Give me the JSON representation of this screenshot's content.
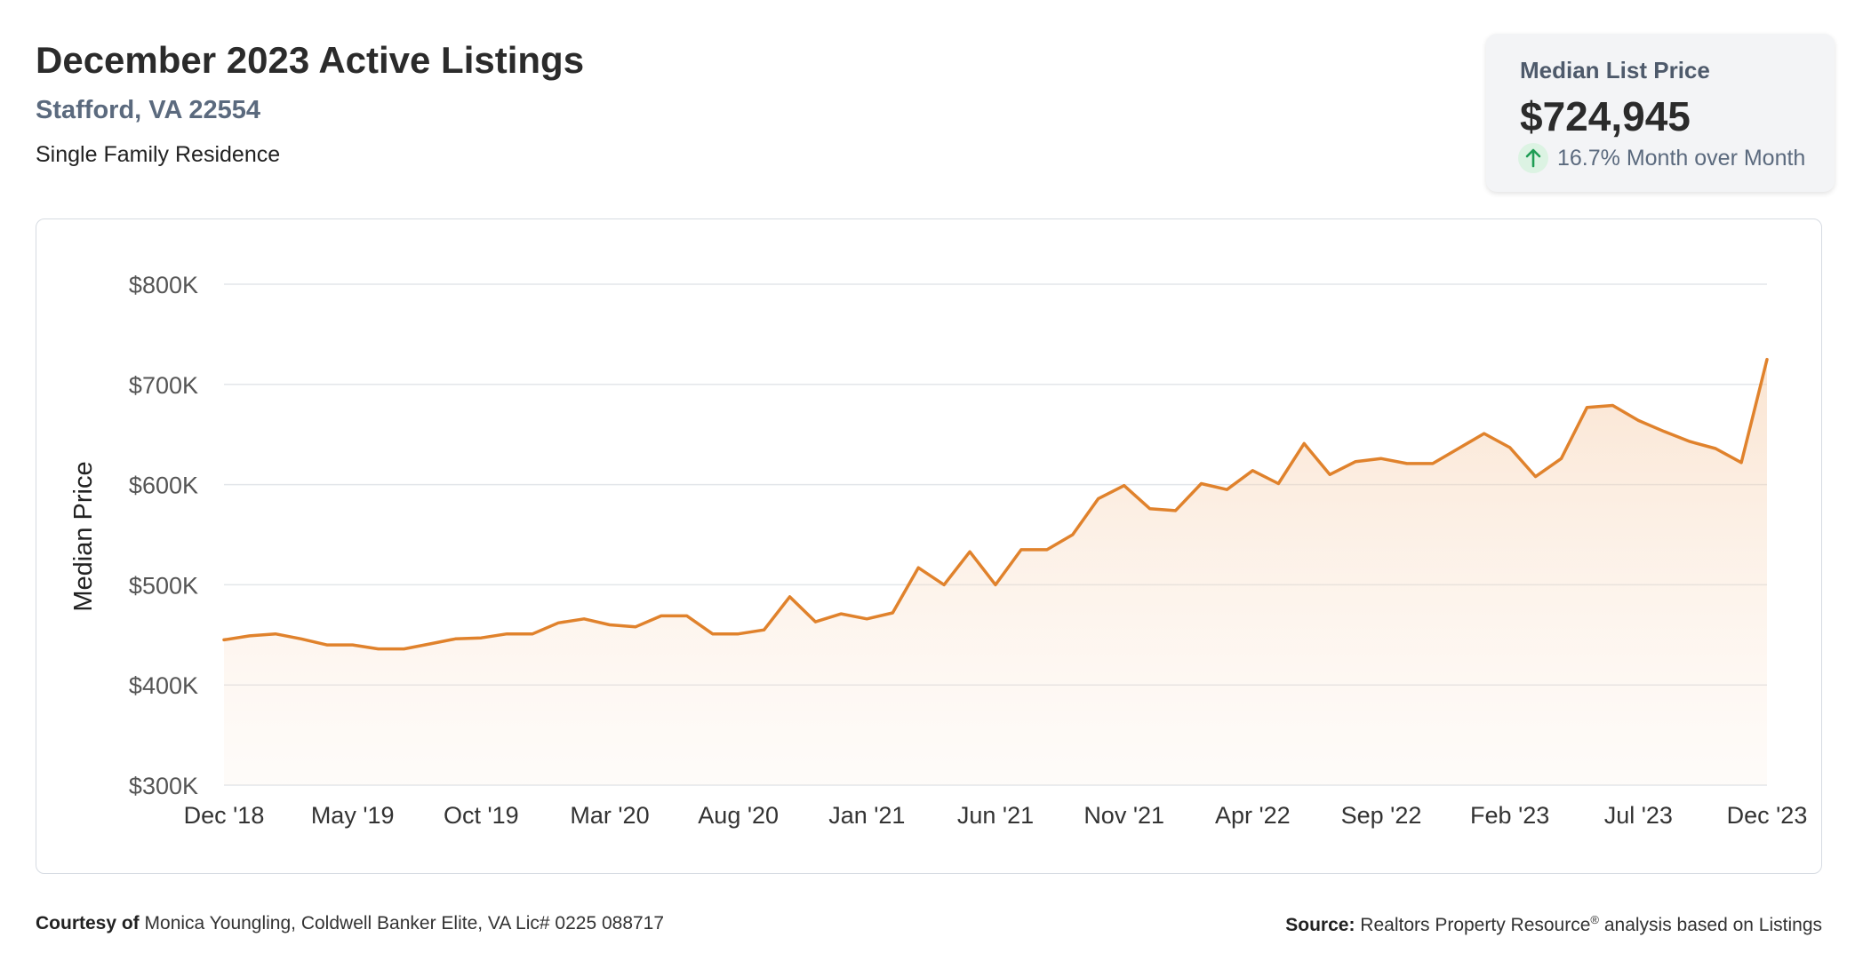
{
  "header": {
    "title": "December 2023 Active Listings",
    "location": "Stafford, VA 22554",
    "property_type": "Single Family Residence"
  },
  "stat_card": {
    "label": "Median List Price",
    "value": "$724,945",
    "change_icon": "arrow-up-icon",
    "change_text": "16.7% Month over Month",
    "change_color": "#1f9d55"
  },
  "chart_data": {
    "type": "area",
    "title": "",
    "xlabel": "",
    "ylabel": "Median Price",
    "ylim": [
      300000,
      800000
    ],
    "y_ticks": [
      300000,
      400000,
      500000,
      600000,
      700000,
      800000
    ],
    "y_tick_labels": [
      "$300K",
      "$400K",
      "$500K",
      "$600K",
      "$700K",
      "$800K"
    ],
    "x_tick_labels": [
      "Dec '18",
      "May '19",
      "Oct '19",
      "Mar '20",
      "Aug '20",
      "Jan '21",
      "Jun '21",
      "Nov '21",
      "Apr '22",
      "Sep '22",
      "Feb '23",
      "Jul '23",
      "Dec '23"
    ],
    "x_tick_every": 5,
    "grid": true,
    "line_color": "#e0822c",
    "fill_color": "#f6cba4",
    "x": [
      "2018-12",
      "2019-01",
      "2019-02",
      "2019-03",
      "2019-04",
      "2019-05",
      "2019-06",
      "2019-07",
      "2019-08",
      "2019-09",
      "2019-10",
      "2019-11",
      "2019-12",
      "2020-01",
      "2020-02",
      "2020-03",
      "2020-04",
      "2020-05",
      "2020-06",
      "2020-07",
      "2020-08",
      "2020-09",
      "2020-10",
      "2020-11",
      "2020-12",
      "2021-01",
      "2021-02",
      "2021-03",
      "2021-04",
      "2021-05",
      "2021-06",
      "2021-07",
      "2021-08",
      "2021-09",
      "2021-10",
      "2021-11",
      "2021-12",
      "2022-01",
      "2022-02",
      "2022-03",
      "2022-04",
      "2022-05",
      "2022-06",
      "2022-07",
      "2022-08",
      "2022-09",
      "2022-10",
      "2022-11",
      "2022-12",
      "2023-01",
      "2023-02",
      "2023-03",
      "2023-04",
      "2023-05",
      "2023-06",
      "2023-07",
      "2023-08",
      "2023-09",
      "2023-10",
      "2023-11",
      "2023-12"
    ],
    "values": [
      445000,
      449000,
      451000,
      446000,
      440000,
      440000,
      436000,
      436000,
      441000,
      446000,
      447000,
      451000,
      451000,
      462000,
      466000,
      460000,
      458000,
      469000,
      469000,
      451000,
      451000,
      455000,
      488000,
      463000,
      471000,
      466000,
      472000,
      517000,
      500000,
      533000,
      500000,
      535000,
      535000,
      550000,
      586000,
      599000,
      576000,
      574000,
      601000,
      595000,
      614000,
      601000,
      641000,
      610000,
      623000,
      626000,
      621000,
      621000,
      636000,
      651000,
      637000,
      608000,
      626000,
      677000,
      679000,
      664000,
      653000,
      643000,
      636000,
      622000,
      724945
    ]
  },
  "footer": {
    "courtesy_label": "Courtesy of",
    "courtesy_text": "Monica Youngling, Coldwell Banker Elite, VA Lic# 0225 088717",
    "source_label": "Source:",
    "source_text": "Realtors Property Resource",
    "source_mark": "®",
    "source_suffix": "analysis based on Listings"
  }
}
